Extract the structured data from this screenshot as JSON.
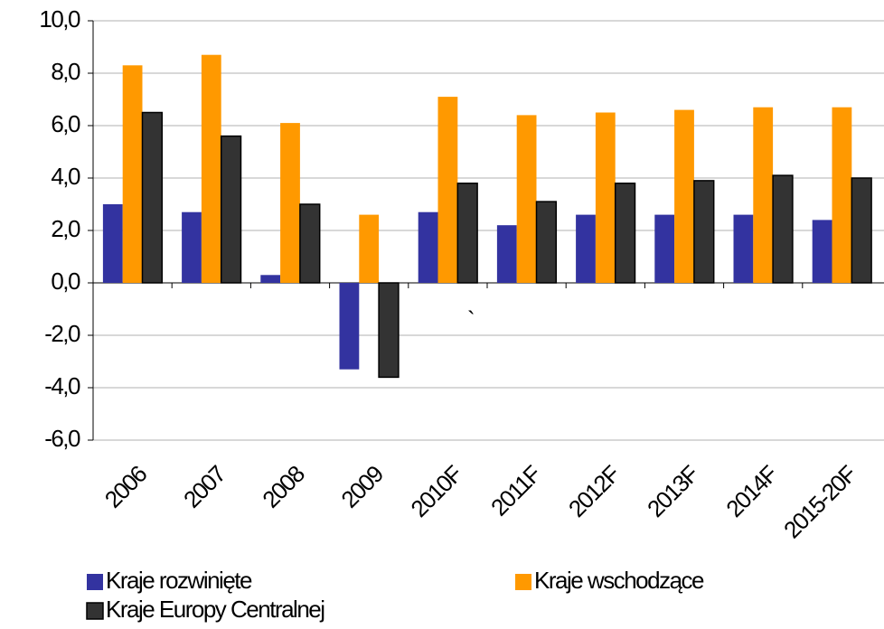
{
  "chart_data": {
    "type": "bar",
    "categories": [
      "2006",
      "2007",
      "2008",
      "2009",
      "2010F",
      "2011F",
      "2012F",
      "2013F",
      "2014F",
      "2015-20F"
    ],
    "series": [
      {
        "name": "Kraje rozwinięte",
        "color": "#3333a0",
        "values": [
          3.0,
          2.7,
          0.3,
          -3.3,
          2.7,
          2.2,
          2.6,
          2.6,
          2.6,
          2.4
        ]
      },
      {
        "name": "Kraje wschodzące",
        "color": "#ff9900",
        "values": [
          8.3,
          8.7,
          6.1,
          2.6,
          7.1,
          6.4,
          6.5,
          6.6,
          6.7,
          6.7
        ]
      },
      {
        "name": "Kraje Europy Centralnej",
        "color": "#333333",
        "edgecolor": "#000000",
        "values": [
          6.5,
          5.6,
          3.0,
          -3.6,
          3.8,
          3.1,
          3.8,
          3.9,
          4.1,
          4.0
        ]
      }
    ],
    "ylim": [
      -6,
      10
    ],
    "yticks": [
      {
        "value": -6,
        "label": "-6,0"
      },
      {
        "value": -4,
        "label": "-4,0"
      },
      {
        "value": -2,
        "label": "-2,0"
      },
      {
        "value": 0,
        "label": "0,0"
      },
      {
        "value": 2,
        "label": "2,0"
      },
      {
        "value": 4,
        "label": "4,0"
      },
      {
        "value": 6,
        "label": "6,0"
      },
      {
        "value": 8,
        "label": "8,0"
      },
      {
        "value": 10,
        "label": "10,0"
      }
    ],
    "grid": true,
    "annotation": "`"
  }
}
